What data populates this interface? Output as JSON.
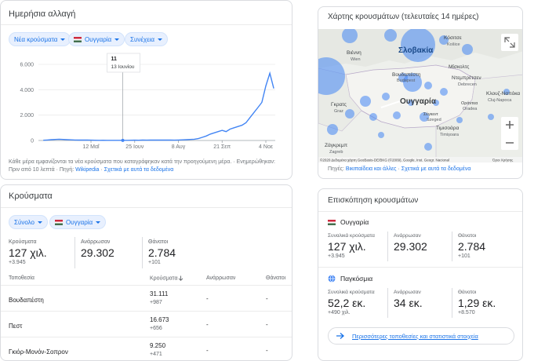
{
  "daily_change": {
    "title": "Ημερήσια αλλαγή",
    "chips": [
      "Νέα κρούσματα",
      "Ουγγαρία",
      "Συνέχεια"
    ],
    "footnote": "Κάθε μέρα εμφανίζονται τα νέα κρούσματα που καταγράφηκαν κατά την προηγούμενη μέρα. · Ενημερώθηκαν: Πριν από 10 λεπτά · Πηγή:",
    "source": "Wikipedia",
    "about": "Σχετικά με αυτά τα δεδομένα"
  },
  "chart_data": {
    "type": "line",
    "color": "#4285f4",
    "grid": true,
    "categories": [
      null,
      null,
      null,
      null,
      null,
      null,
      null,
      null,
      null,
      null,
      null,
      null,
      "12 Μαΐ",
      null,
      null,
      null,
      null,
      null,
      null,
      null,
      null,
      null,
      null,
      "25 Ιουν",
      null,
      null,
      null,
      null,
      null,
      null,
      null,
      null,
      null,
      null,
      "8 Αυγ",
      null,
      null,
      null,
      null,
      null,
      null,
      null,
      null,
      null,
      null,
      "21 Σεπ",
      null,
      null,
      null,
      null,
      null,
      null,
      null,
      null,
      null,
      null,
      "4 Νοε",
      null,
      null
    ],
    "values": [
      20,
      40,
      60,
      80,
      100,
      80,
      60,
      50,
      40,
      30,
      35,
      30,
      25,
      20,
      15,
      20,
      15,
      10,
      15,
      12,
      11,
      15,
      20,
      25,
      20,
      30,
      25,
      35,
      30,
      40,
      30,
      35,
      30,
      25,
      40,
      50,
      60,
      80,
      100,
      150,
      250,
      350,
      500,
      600,
      700,
      800,
      700,
      900,
      1000,
      1100,
      1200,
      1400,
      1800,
      2200,
      2600,
      3000,
      4300,
      5300,
      4100
    ],
    "ylim": [
      0,
      6000
    ],
    "yticks": [
      0,
      {
        "value": 2000,
        "label": "2.000"
      },
      {
        "value": 4000,
        "label": "4.000"
      },
      {
        "value": 6000,
        "label": "6.000"
      }
    ],
    "tooltip_date": "13 Ιουνίου"
  },
  "cases": {
    "title": "Κρούσματα",
    "chips": [
      "Σύνολο",
      "Ουγγαρία"
    ],
    "stats": [
      {
        "label": "Κρούσματα",
        "value": "127 χιλ.",
        "delta": "+3.945"
      },
      {
        "label": "Ανάρρωσαν",
        "value": "29.302"
      },
      {
        "label": "Θάνατοι",
        "value": "2.784",
        "delta": "+101"
      }
    ],
    "table": {
      "header": [
        "Τοποθεσία",
        "Κρούσματα",
        "Ανάρρωσαν",
        "Θάνατοι"
      ],
      "rows": [
        {
          "location": "Βουδαπέστη",
          "cases": "31.111",
          "delta": "+987",
          "recovered": "-",
          "deaths": "-"
        },
        {
          "location": "Πεστ",
          "cases": "16.673",
          "delta": "+656",
          "recovered": "-",
          "deaths": "-"
        },
        {
          "location": "Γκιόρ-Μονόν-Σοπρον",
          "cases": "9.250",
          "delta": "+471",
          "recovered": "-",
          "deaths": "-"
        }
      ]
    }
  },
  "map": {
    "title": "Χάρτης κρουσμάτων (τελευταίες 14 ημέρες)",
    "labels": [
      "Κόσιτσε",
      "Košice",
      "Σλοβακία",
      "Βιέννη",
      "Wien",
      "Μίσκολτς",
      "Βουδαπέστη",
      "Budapest",
      "Ντεμπρέτσεν",
      "Debrecen",
      "Ουγγαρία",
      "Γκρατς",
      "Graz",
      "Κλουζ-Ναπόκα",
      "Cluj-Napoca",
      "Οράντεα",
      "Oradea",
      "Σέγκεντ",
      "Szeged",
      "Τιμισοάρα",
      "Timișoara",
      "Ζάγκρεμπ",
      "Zagreb"
    ],
    "attribution": "©2020 Δεδομένα χάρτη GeoBasis-DE/BKG (©2009), Google, Inst. Geogr. Nacional",
    "terms": "Όροι Χρήσης",
    "sources": "Πηγές:",
    "sources_link": "Βικιπαίδεια και άλλες",
    "about": "Σχετικά με αυτά τα δεδομένα"
  },
  "overview": {
    "title": "Επισκόπηση κρουσμάτων",
    "groups": [
      {
        "name": "Ουγγαρία",
        "stats": [
          {
            "label": "Συναλικά κρούσματα",
            "value": "127 χιλ.",
            "delta": "+3.945"
          },
          {
            "label": "Ανάρρωσαν",
            "value": "29.302"
          },
          {
            "label": "Θάνατοι",
            "value": "2.784",
            "delta": "+101"
          }
        ]
      },
      {
        "name": "Παγκόσμια",
        "stats": [
          {
            "label": "Συνολικά κρούσματα",
            "value": "52,2 εκ.",
            "delta": "+490 χιλ."
          },
          {
            "label": "Ανάρρωσαν",
            "value": "34 εκ."
          },
          {
            "label": "Θάνατοι",
            "value": "1,29 εκ.",
            "delta": "+8.570"
          }
        ]
      }
    ],
    "more": "Περισσότερες τοποθεσίες και στατιστικά στοιχεία"
  }
}
